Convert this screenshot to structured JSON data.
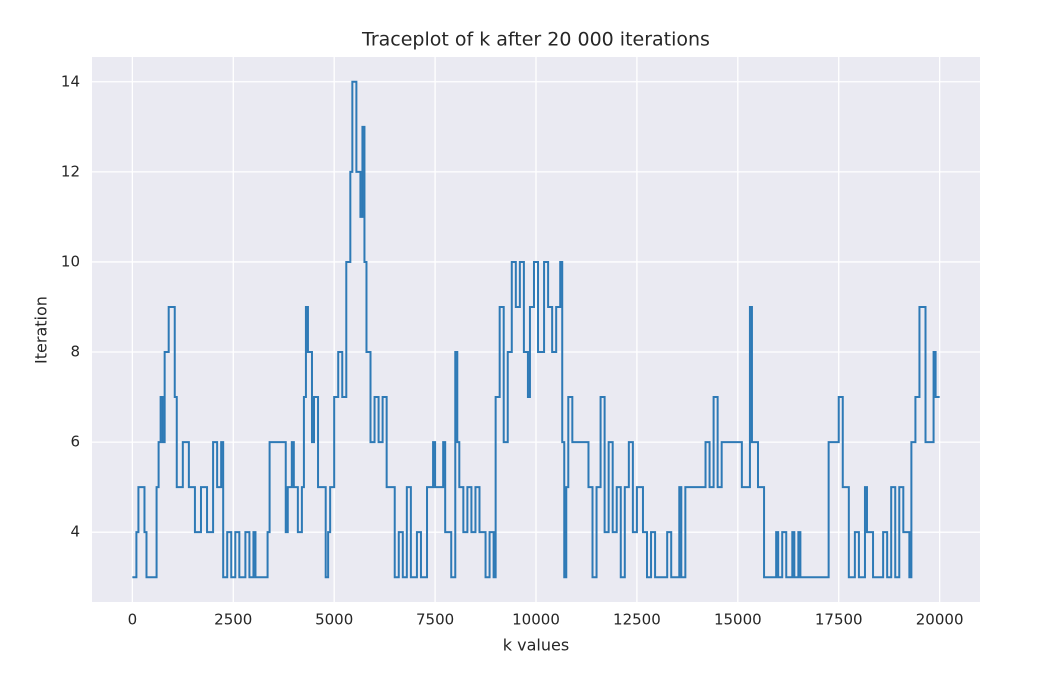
{
  "chart_data": {
    "type": "line",
    "title": "Traceplot of k after 20 000 iterations",
    "xlabel": "k values",
    "ylabel": "Iteration",
    "step": "post",
    "grid": true,
    "background": "#eaeaf2",
    "series": [
      {
        "color": "#2e7ab6",
        "x": [
          0,
          100,
          150,
          300,
          350,
          600,
          650,
          700,
          750,
          800,
          900,
          1050,
          1100,
          1250,
          1400,
          1550,
          1700,
          1850,
          2000,
          2100,
          2200,
          2250,
          2350,
          2450,
          2550,
          2650,
          2800,
          2900,
          3000,
          3050,
          3350,
          3400,
          3800,
          3850,
          3950,
          4000,
          4100,
          4200,
          4250,
          4300,
          4350,
          4450,
          4500,
          4600,
          4700,
          4790,
          4850,
          4900,
          5000,
          5100,
          5200,
          5300,
          5400,
          5450,
          5550,
          5650,
          5700,
          5750,
          5800,
          5900,
          6000,
          6100,
          6200,
          6300,
          6500,
          6600,
          6700,
          6800,
          6900,
          7050,
          7150,
          7300,
          7450,
          7500,
          7700,
          7750,
          7900,
          8000,
          8050,
          8100,
          8200,
          8300,
          8400,
          8500,
          8600,
          8750,
          8850,
          8950,
          9000,
          9100,
          9200,
          9300,
          9400,
          9500,
          9600,
          9700,
          9800,
          9850,
          9950,
          10050,
          10200,
          10300,
          10400,
          10500,
          10600,
          10650,
          10700,
          10750,
          10800,
          10900,
          11300,
          11400,
          11500,
          11600,
          11700,
          11800,
          11900,
          12000,
          12100,
          12200,
          12300,
          12400,
          12500,
          12650,
          12750,
          12850,
          12950,
          13250,
          13350,
          13550,
          13600,
          13700,
          14200,
          14300,
          14400,
          14500,
          14600,
          15100,
          15300,
          15350,
          15500,
          15650,
          15950,
          16000,
          16100,
          16200,
          16350,
          16400,
          16500,
          16550,
          17250,
          17500,
          17600,
          17750,
          17900,
          18000,
          18150,
          18200,
          18350,
          18600,
          18700,
          18800,
          18900,
          19000,
          19100,
          19250,
          19300,
          19400,
          19500,
          19650,
          19850,
          19900,
          20000
        ],
        "values": [
          3,
          4,
          5,
          4,
          3,
          5,
          6,
          7,
          6,
          8,
          9,
          7,
          5,
          6,
          5,
          4,
          5,
          4,
          6,
          5,
          6,
          3,
          4,
          3,
          4,
          3,
          4,
          3,
          4,
          3,
          4,
          6,
          4,
          5,
          6,
          5,
          4,
          5,
          7,
          9,
          8,
          6,
          7,
          5,
          5,
          3,
          4,
          5,
          7,
          8,
          7,
          10,
          12,
          14,
          12,
          11,
          13,
          10,
          8,
          6,
          7,
          6,
          7,
          5,
          3,
          4,
          3,
          5,
          3,
          4,
          3,
          5,
          6,
          5,
          6,
          4,
          3,
          8,
          6,
          5,
          4,
          5,
          4,
          5,
          4,
          3,
          4,
          3,
          7,
          9,
          6,
          8,
          10,
          9,
          10,
          8,
          7,
          9,
          10,
          8,
          10,
          9,
          8,
          9,
          10,
          6,
          3,
          5,
          7,
          6,
          5,
          3,
          5,
          7,
          4,
          6,
          4,
          5,
          3,
          5,
          6,
          4,
          5,
          4,
          3,
          4,
          3,
          4,
          3,
          5,
          3,
          5,
          6,
          5,
          7,
          5,
          6,
          5,
          9,
          6,
          5,
          3,
          4,
          3,
          4,
          3,
          4,
          3,
          4,
          3,
          6,
          7,
          5,
          3,
          4,
          3,
          5,
          4,
          3,
          4,
          3,
          5,
          3,
          5,
          4,
          3,
          6,
          7,
          9,
          6,
          8,
          7,
          7
        ]
      }
    ],
    "xlim": [
      -1000,
      21000
    ],
    "xticks": [
      0,
      2500,
      5000,
      7500,
      10000,
      12500,
      15000,
      17500,
      20000
    ],
    "ylim": [
      2.45,
      14.55
    ],
    "yticks": [
      4,
      6,
      8,
      10,
      12,
      14
    ]
  }
}
